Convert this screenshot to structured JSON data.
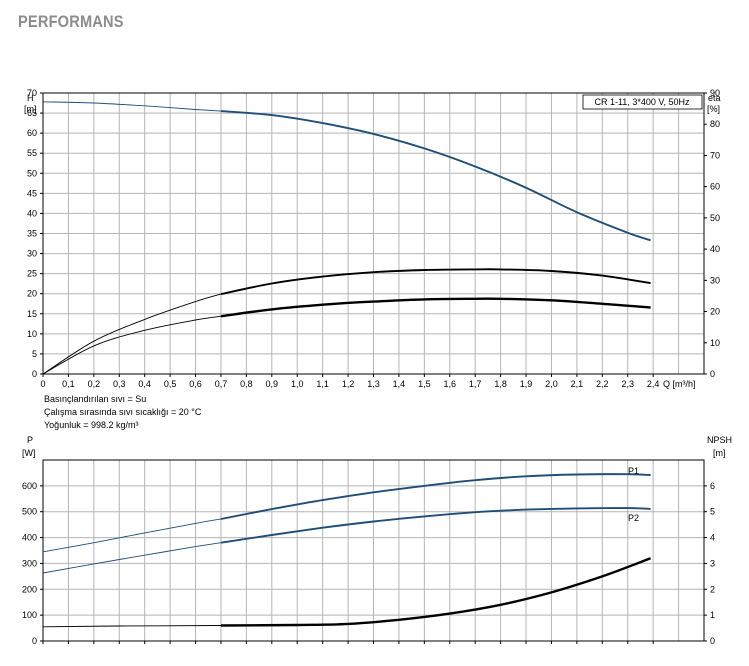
{
  "page": {
    "heading": "PERFORMANS"
  },
  "colors": {
    "blue": "#1f4e79",
    "black": "#000000",
    "grid": "#b5b5b5"
  },
  "chart_data": [
    {
      "type": "line",
      "id": "head-efficiency",
      "legend_text": "CR 1-11, 3*400 V, 50Hz",
      "legend_position": "top-right",
      "ylabel_left": {
        "name": "H",
        "unit": "[m]"
      },
      "ylabel_right": {
        "name": "eta",
        "unit": "[%]"
      },
      "xlabel": "Q [m³/h]",
      "xlim": [
        0,
        2.6
      ],
      "ylim": [
        0,
        70
      ],
      "y2lim": [
        0,
        90
      ],
      "x_ticks": [
        "0",
        "0,1",
        "0,2",
        "0,3",
        "0,4",
        "0,5",
        "0,6",
        "0,7",
        "0,8",
        "0,9",
        "1,0",
        "1,1",
        "1,2",
        "1,3",
        "1,4",
        "1,5",
        "1,6",
        "1,7",
        "1,8",
        "1,9",
        "2,0",
        "2,1",
        "2,2",
        "2,3",
        "2,4"
      ],
      "y_ticks": [
        "0",
        "5",
        "10",
        "15",
        "20",
        "25",
        "30",
        "35",
        "40",
        "45",
        "50",
        "55",
        "60",
        "65",
        "70"
      ],
      "y2_ticks": [
        "0",
        "10",
        "20",
        "30",
        "40",
        "50",
        "60",
        "70",
        "80",
        "90"
      ],
      "grid": true,
      "series": [
        {
          "role": "H",
          "color": "#1f4e79",
          "axis": "left",
          "dashed_until": 0.7,
          "x": [
            0,
            0.2,
            0.4,
            0.6,
            0.7,
            0.9,
            1.1,
            1.3,
            1.5,
            1.7,
            1.9,
            2.1,
            2.3,
            2.39
          ],
          "y": [
            67.8,
            67.5,
            66.8,
            65.9,
            65.5,
            64.5,
            62.5,
            59.8,
            56.2,
            51.7,
            46.4,
            40.3,
            35.2,
            33.3
          ]
        },
        {
          "role": "eta",
          "color": "#000000",
          "axis": "right",
          "dashed_until": 0.7,
          "x": [
            0,
            0.2,
            0.4,
            0.6,
            0.7,
            0.9,
            1.1,
            1.3,
            1.5,
            1.7,
            1.8,
            2.0,
            2.2,
            2.39
          ],
          "y": [
            0,
            10.5,
            17.5,
            23.2,
            25.6,
            29.0,
            31.2,
            32.6,
            33.3,
            33.5,
            33.5,
            33.0,
            31.5,
            29.1
          ]
        },
        {
          "role": "eta_p3",
          "color": "#000000",
          "axis": "right",
          "dashed_until": 0.7,
          "bold": true,
          "x": [
            0,
            0.2,
            0.4,
            0.6,
            0.7,
            0.9,
            1.1,
            1.3,
            1.5,
            1.7,
            1.8,
            2.0,
            2.2,
            2.39
          ],
          "y": [
            0,
            9.0,
            14.0,
            17.3,
            18.5,
            20.7,
            22.2,
            23.2,
            23.9,
            24.1,
            24.1,
            23.6,
            22.5,
            21.3
          ]
        }
      ]
    },
    {
      "type": "line",
      "id": "power-npsh",
      "ylabel_left": {
        "name": "P",
        "unit": "[W]"
      },
      "ylabel_right": {
        "name": "NPSH",
        "unit": "[m]"
      },
      "xlim": [
        0,
        2.6
      ],
      "ylim": [
        0,
        700
      ],
      "y2lim": [
        0,
        7
      ],
      "y_ticks": [
        "0",
        "100",
        "200",
        "300",
        "400",
        "500",
        "600"
      ],
      "y2_ticks": [
        "0",
        "1",
        "2",
        "3",
        "4",
        "5",
        "6"
      ],
      "grid": true,
      "series": [
        {
          "name": "P1",
          "color": "#1f4e79",
          "axis": "left",
          "dashed_until": 0.7,
          "x": [
            0,
            0.2,
            0.4,
            0.6,
            0.7,
            0.9,
            1.1,
            1.3,
            1.5,
            1.7,
            1.9,
            2.1,
            2.3,
            2.39
          ],
          "y": [
            345,
            380,
            418,
            455,
            472,
            510,
            545,
            575,
            600,
            622,
            637,
            644,
            645,
            642
          ]
        },
        {
          "name": "P2",
          "color": "#1f4e79",
          "axis": "left",
          "dashed_until": 0.7,
          "x": [
            0,
            0.2,
            0.4,
            0.6,
            0.7,
            0.9,
            1.1,
            1.3,
            1.5,
            1.7,
            1.9,
            2.1,
            2.3,
            2.39
          ],
          "y": [
            263,
            298,
            332,
            365,
            380,
            410,
            438,
            462,
            482,
            498,
            508,
            513,
            514,
            511
          ]
        },
        {
          "role": "NPSH",
          "color": "#000000",
          "axis": "right",
          "dashed_until": 0.7,
          "bold": true,
          "x": [
            0,
            0.3,
            0.7,
            1.0,
            1.2,
            1.4,
            1.6,
            1.8,
            2.0,
            2.2,
            2.39
          ],
          "y": [
            0.55,
            0.58,
            0.6,
            0.62,
            0.66,
            0.82,
            1.06,
            1.4,
            1.88,
            2.5,
            3.2
          ]
        }
      ]
    }
  ],
  "conditions": [
    "Basınçlandırılan sıvı = Su",
    "Çalışma sırasında sıvı sıcaklığı = 20 °C",
    "Yoğunluk = 998.2 kg/m³"
  ]
}
